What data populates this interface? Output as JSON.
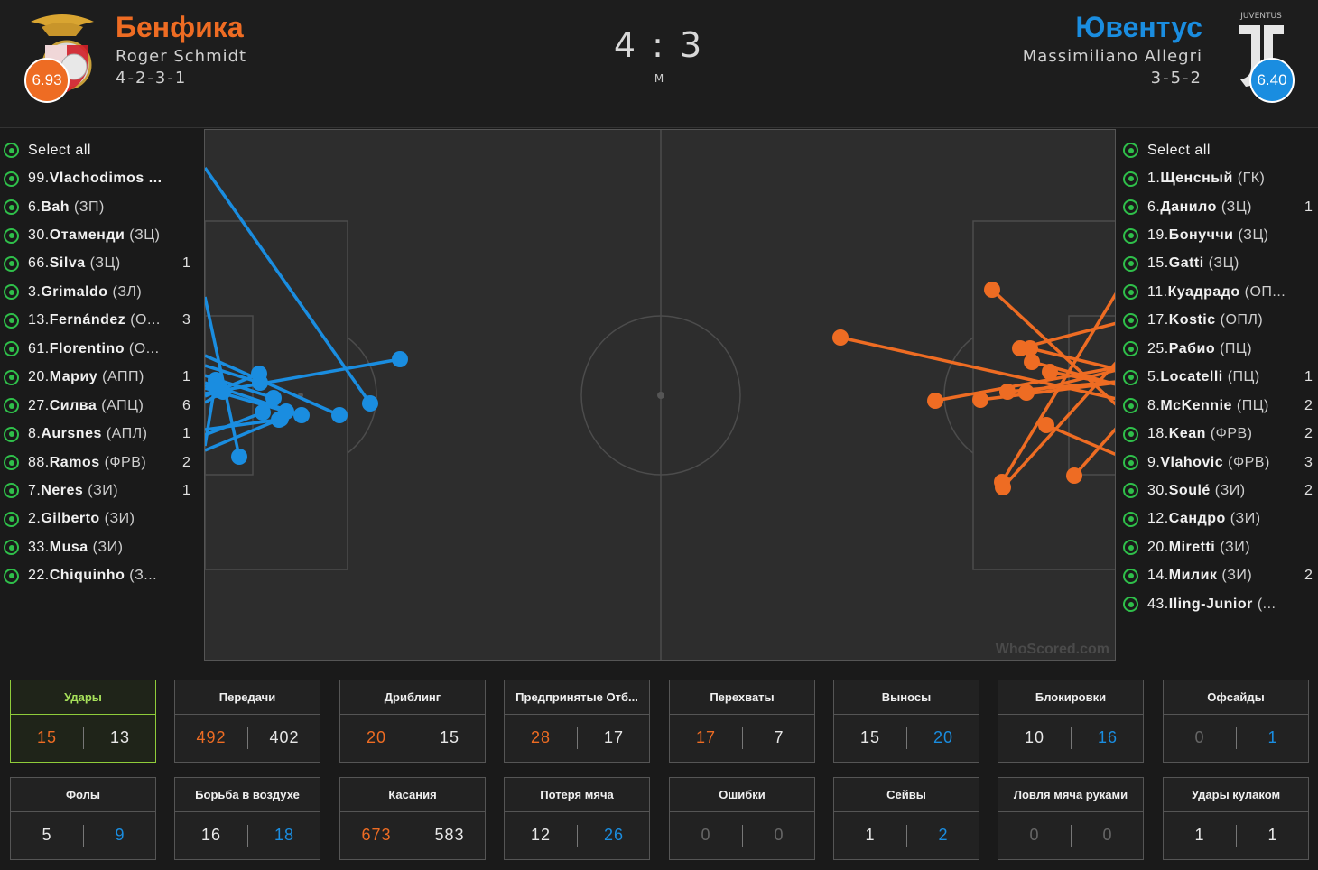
{
  "colors": {
    "home": "#ee6c23",
    "away": "#1a8de0",
    "select": "#2fbf4a",
    "active": "#8fcc3a"
  },
  "header": {
    "home": {
      "name": "Бенфика",
      "manager": "Roger Schmidt",
      "formation": "4-2-3-1",
      "rating": "6.93",
      "crest_icon": "benfica-crest-icon"
    },
    "away": {
      "name": "Ювентус",
      "manager": "Massimiliano Allegri",
      "formation": "3-5-2",
      "rating": "6.40",
      "crest_icon": "juventus-crest-icon",
      "crest_text": "JUVENTUS"
    },
    "score": "4 : 3",
    "status": "M"
  },
  "home_players": [
    {
      "num": "",
      "name": "Select all",
      "pos": "",
      "count": ""
    },
    {
      "num": "99.",
      "name": "Vlachodimos ...",
      "pos": "",
      "count": ""
    },
    {
      "num": "6.",
      "name": "Bah",
      "pos": "(ЗП)",
      "count": ""
    },
    {
      "num": "30.",
      "name": "Отаменди",
      "pos": "(ЗЦ)",
      "count": ""
    },
    {
      "num": "66.",
      "name": "Silva",
      "pos": "(ЗЦ)",
      "count": "1"
    },
    {
      "num": "3.",
      "name": "Grimaldo",
      "pos": "(ЗЛ)",
      "count": ""
    },
    {
      "num": "13.",
      "name": "Fernández",
      "pos": "(О...",
      "count": "3"
    },
    {
      "num": "61.",
      "name": "Florentino",
      "pos": "(О...",
      "count": ""
    },
    {
      "num": "20.",
      "name": "Мариу",
      "pos": "(АПП)",
      "count": "1"
    },
    {
      "num": "27.",
      "name": "Силва",
      "pos": "(АПЦ)",
      "count": "6"
    },
    {
      "num": "8.",
      "name": "Aursnes",
      "pos": "(АПЛ)",
      "count": "1"
    },
    {
      "num": "88.",
      "name": "Ramos",
      "pos": "(ФРВ)",
      "count": "2"
    },
    {
      "num": "7.",
      "name": "Neres",
      "pos": "(ЗИ)",
      "count": "1"
    },
    {
      "num": "2.",
      "name": "Gilberto",
      "pos": "(ЗИ)",
      "count": ""
    },
    {
      "num": "33.",
      "name": "Musa",
      "pos": "(ЗИ)",
      "count": ""
    },
    {
      "num": "22.",
      "name": "Chiquinho",
      "pos": "(З...",
      "count": ""
    }
  ],
  "away_players": [
    {
      "num": "",
      "name": "Select all",
      "pos": "",
      "count": ""
    },
    {
      "num": "1.",
      "name": "Щенсный",
      "pos": "(ГК)",
      "count": ""
    },
    {
      "num": "6.",
      "name": "Данило",
      "pos": "(ЗЦ)",
      "count": "1"
    },
    {
      "num": "19.",
      "name": "Бонуччи",
      "pos": "(ЗЦ)",
      "count": ""
    },
    {
      "num": "15.",
      "name": "Gatti",
      "pos": "(ЗЦ)",
      "count": ""
    },
    {
      "num": "11.",
      "name": "Куадрадо",
      "pos": "(ОП...",
      "count": ""
    },
    {
      "num": "17.",
      "name": "Kostic",
      "pos": "(ОПЛ)",
      "count": ""
    },
    {
      "num": "25.",
      "name": "Рабио",
      "pos": "(ПЦ)",
      "count": ""
    },
    {
      "num": "5.",
      "name": "Locatelli",
      "pos": "(ПЦ)",
      "count": "1"
    },
    {
      "num": "8.",
      "name": "McKennie",
      "pos": "(ПЦ)",
      "count": "2"
    },
    {
      "num": "18.",
      "name": "Kean",
      "pos": "(ФРВ)",
      "count": "2"
    },
    {
      "num": "9.",
      "name": "Vlahovic",
      "pos": "(ФРВ)",
      "count": "3"
    },
    {
      "num": "30.",
      "name": "Soulé",
      "pos": "(ЗИ)",
      "count": "2"
    },
    {
      "num": "12.",
      "name": "Сандро",
      "pos": "(ЗИ)",
      "count": ""
    },
    {
      "num": "20.",
      "name": "Miretti",
      "pos": "(ЗИ)",
      "count": ""
    },
    {
      "num": "14.",
      "name": "Милик",
      "pos": "(ЗИ)",
      "count": "2"
    },
    {
      "num": "43.",
      "name": "Iling-Junior",
      "pos": "(...",
      "count": ""
    }
  ],
  "pitch": {
    "watermark": "WhoScored.com"
  },
  "stats": [
    {
      "label": "Удары",
      "home": "15",
      "away": "13",
      "hc": "home",
      "ac": "neutral",
      "active": true
    },
    {
      "label": "Передачи",
      "home": "492",
      "away": "402",
      "hc": "home",
      "ac": "neutral"
    },
    {
      "label": "Дриблинг",
      "home": "20",
      "away": "15",
      "hc": "home",
      "ac": "neutral"
    },
    {
      "label": "Предпринятые Отб...",
      "home": "28",
      "away": "17",
      "hc": "home",
      "ac": "neutral"
    },
    {
      "label": "Перехваты",
      "home": "17",
      "away": "7",
      "hc": "home",
      "ac": "neutral"
    },
    {
      "label": "Выносы",
      "home": "15",
      "away": "20",
      "hc": "neutral",
      "ac": "away"
    },
    {
      "label": "Блокировки",
      "home": "10",
      "away": "16",
      "hc": "neutral",
      "ac": "away"
    },
    {
      "label": "Офсайды",
      "home": "0",
      "away": "1",
      "hc": "dim",
      "ac": "away"
    },
    {
      "label": "Фолы",
      "home": "5",
      "away": "9",
      "hc": "neutral",
      "ac": "away"
    },
    {
      "label": "Борьба в воздухе",
      "home": "16",
      "away": "18",
      "hc": "neutral",
      "ac": "away"
    },
    {
      "label": "Касания",
      "home": "673",
      "away": "583",
      "hc": "home",
      "ac": "neutral"
    },
    {
      "label": "Потеря мяча",
      "home": "12",
      "away": "26",
      "hc": "neutral",
      "ac": "away"
    },
    {
      "label": "Ошибки",
      "home": "0",
      "away": "0",
      "hc": "dim",
      "ac": "dim"
    },
    {
      "label": "Сейвы",
      "home": "1",
      "away": "2",
      "hc": "neutral",
      "ac": "away"
    },
    {
      "label": "Ловля мяча руками",
      "home": "0",
      "away": "0",
      "hc": "dim",
      "ac": "dim"
    },
    {
      "label": "Удары кулаком",
      "home": "1",
      "away": "1",
      "hc": "neutral",
      "ac": "neutral"
    }
  ]
}
